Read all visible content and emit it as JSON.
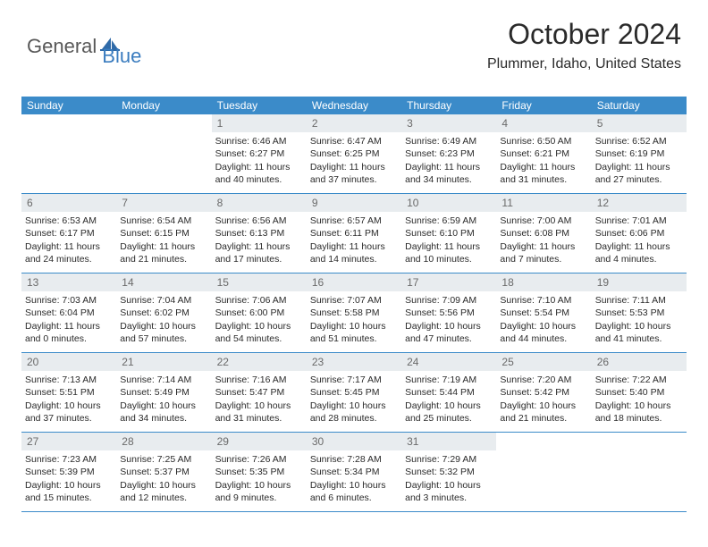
{
  "logo": {
    "general": "General",
    "blue": "Blue"
  },
  "title": "October 2024",
  "location": "Plummer, Idaho, United States",
  "colors": {
    "header_bg": "#3b8bc9",
    "header_text": "#ffffff",
    "daynum_bg": "#e8ecef",
    "daynum_text": "#6a6a6a",
    "border": "#3b8bc9",
    "logo_blue": "#3a7cbf",
    "logo_gray": "#585858"
  },
  "day_headers": [
    "Sunday",
    "Monday",
    "Tuesday",
    "Wednesday",
    "Thursday",
    "Friday",
    "Saturday"
  ],
  "weeks": [
    [
      {
        "n": "",
        "empty": true
      },
      {
        "n": "",
        "empty": true
      },
      {
        "n": "1",
        "sunrise": "Sunrise: 6:46 AM",
        "sunset": "Sunset: 6:27 PM",
        "daylight": "Daylight: 11 hours and 40 minutes."
      },
      {
        "n": "2",
        "sunrise": "Sunrise: 6:47 AM",
        "sunset": "Sunset: 6:25 PM",
        "daylight": "Daylight: 11 hours and 37 minutes."
      },
      {
        "n": "3",
        "sunrise": "Sunrise: 6:49 AM",
        "sunset": "Sunset: 6:23 PM",
        "daylight": "Daylight: 11 hours and 34 minutes."
      },
      {
        "n": "4",
        "sunrise": "Sunrise: 6:50 AM",
        "sunset": "Sunset: 6:21 PM",
        "daylight": "Daylight: 11 hours and 31 minutes."
      },
      {
        "n": "5",
        "sunrise": "Sunrise: 6:52 AM",
        "sunset": "Sunset: 6:19 PM",
        "daylight": "Daylight: 11 hours and 27 minutes."
      }
    ],
    [
      {
        "n": "6",
        "sunrise": "Sunrise: 6:53 AM",
        "sunset": "Sunset: 6:17 PM",
        "daylight": "Daylight: 11 hours and 24 minutes."
      },
      {
        "n": "7",
        "sunrise": "Sunrise: 6:54 AM",
        "sunset": "Sunset: 6:15 PM",
        "daylight": "Daylight: 11 hours and 21 minutes."
      },
      {
        "n": "8",
        "sunrise": "Sunrise: 6:56 AM",
        "sunset": "Sunset: 6:13 PM",
        "daylight": "Daylight: 11 hours and 17 minutes."
      },
      {
        "n": "9",
        "sunrise": "Sunrise: 6:57 AM",
        "sunset": "Sunset: 6:11 PM",
        "daylight": "Daylight: 11 hours and 14 minutes."
      },
      {
        "n": "10",
        "sunrise": "Sunrise: 6:59 AM",
        "sunset": "Sunset: 6:10 PM",
        "daylight": "Daylight: 11 hours and 10 minutes."
      },
      {
        "n": "11",
        "sunrise": "Sunrise: 7:00 AM",
        "sunset": "Sunset: 6:08 PM",
        "daylight": "Daylight: 11 hours and 7 minutes."
      },
      {
        "n": "12",
        "sunrise": "Sunrise: 7:01 AM",
        "sunset": "Sunset: 6:06 PM",
        "daylight": "Daylight: 11 hours and 4 minutes."
      }
    ],
    [
      {
        "n": "13",
        "sunrise": "Sunrise: 7:03 AM",
        "sunset": "Sunset: 6:04 PM",
        "daylight": "Daylight: 11 hours and 0 minutes."
      },
      {
        "n": "14",
        "sunrise": "Sunrise: 7:04 AM",
        "sunset": "Sunset: 6:02 PM",
        "daylight": "Daylight: 10 hours and 57 minutes."
      },
      {
        "n": "15",
        "sunrise": "Sunrise: 7:06 AM",
        "sunset": "Sunset: 6:00 PM",
        "daylight": "Daylight: 10 hours and 54 minutes."
      },
      {
        "n": "16",
        "sunrise": "Sunrise: 7:07 AM",
        "sunset": "Sunset: 5:58 PM",
        "daylight": "Daylight: 10 hours and 51 minutes."
      },
      {
        "n": "17",
        "sunrise": "Sunrise: 7:09 AM",
        "sunset": "Sunset: 5:56 PM",
        "daylight": "Daylight: 10 hours and 47 minutes."
      },
      {
        "n": "18",
        "sunrise": "Sunrise: 7:10 AM",
        "sunset": "Sunset: 5:54 PM",
        "daylight": "Daylight: 10 hours and 44 minutes."
      },
      {
        "n": "19",
        "sunrise": "Sunrise: 7:11 AM",
        "sunset": "Sunset: 5:53 PM",
        "daylight": "Daylight: 10 hours and 41 minutes."
      }
    ],
    [
      {
        "n": "20",
        "sunrise": "Sunrise: 7:13 AM",
        "sunset": "Sunset: 5:51 PM",
        "daylight": "Daylight: 10 hours and 37 minutes."
      },
      {
        "n": "21",
        "sunrise": "Sunrise: 7:14 AM",
        "sunset": "Sunset: 5:49 PM",
        "daylight": "Daylight: 10 hours and 34 minutes."
      },
      {
        "n": "22",
        "sunrise": "Sunrise: 7:16 AM",
        "sunset": "Sunset: 5:47 PM",
        "daylight": "Daylight: 10 hours and 31 minutes."
      },
      {
        "n": "23",
        "sunrise": "Sunrise: 7:17 AM",
        "sunset": "Sunset: 5:45 PM",
        "daylight": "Daylight: 10 hours and 28 minutes."
      },
      {
        "n": "24",
        "sunrise": "Sunrise: 7:19 AM",
        "sunset": "Sunset: 5:44 PM",
        "daylight": "Daylight: 10 hours and 25 minutes."
      },
      {
        "n": "25",
        "sunrise": "Sunrise: 7:20 AM",
        "sunset": "Sunset: 5:42 PM",
        "daylight": "Daylight: 10 hours and 21 minutes."
      },
      {
        "n": "26",
        "sunrise": "Sunrise: 7:22 AM",
        "sunset": "Sunset: 5:40 PM",
        "daylight": "Daylight: 10 hours and 18 minutes."
      }
    ],
    [
      {
        "n": "27",
        "sunrise": "Sunrise: 7:23 AM",
        "sunset": "Sunset: 5:39 PM",
        "daylight": "Daylight: 10 hours and 15 minutes."
      },
      {
        "n": "28",
        "sunrise": "Sunrise: 7:25 AM",
        "sunset": "Sunset: 5:37 PM",
        "daylight": "Daylight: 10 hours and 12 minutes."
      },
      {
        "n": "29",
        "sunrise": "Sunrise: 7:26 AM",
        "sunset": "Sunset: 5:35 PM",
        "daylight": "Daylight: 10 hours and 9 minutes."
      },
      {
        "n": "30",
        "sunrise": "Sunrise: 7:28 AM",
        "sunset": "Sunset: 5:34 PM",
        "daylight": "Daylight: 10 hours and 6 minutes."
      },
      {
        "n": "31",
        "sunrise": "Sunrise: 7:29 AM",
        "sunset": "Sunset: 5:32 PM",
        "daylight": "Daylight: 10 hours and 3 minutes."
      },
      {
        "n": "",
        "empty": true
      },
      {
        "n": "",
        "empty": true
      }
    ]
  ]
}
